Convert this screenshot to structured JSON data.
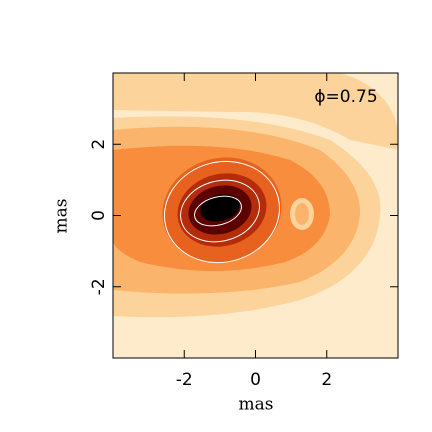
{
  "chart_data": {
    "type": "image",
    "annotation": "ϕ=0.75",
    "x_label": "mas",
    "y_label": "mas",
    "xlim": [
      -4,
      4
    ],
    "ylim": [
      -4,
      4
    ],
    "xticks": [
      -2,
      0,
      2
    ],
    "yticks": [
      -2,
      0,
      2
    ],
    "colormap": [
      "#fdebcc",
      "#fdd39c",
      "#fbb46c",
      "#f78d3d",
      "#e8621f",
      "#b52c0a",
      "#5c0200",
      "#000000"
    ]
  }
}
